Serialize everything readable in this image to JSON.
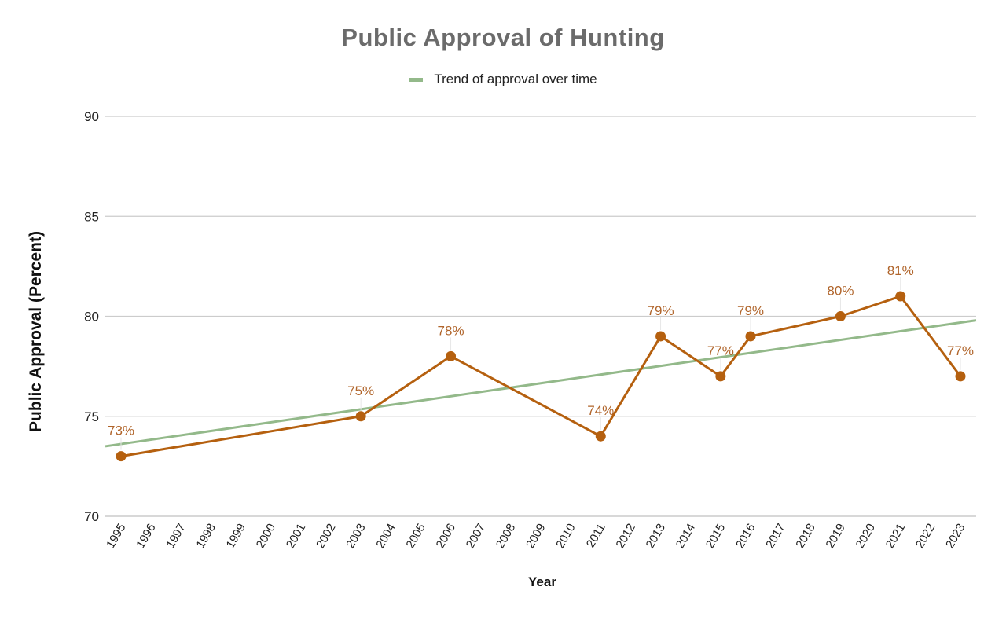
{
  "chart_data": {
    "type": "line",
    "title": "Public Approval of Hunting",
    "xlabel": "Year",
    "ylabel": "Public Approval (Percent)",
    "ylim": [
      70,
      90
    ],
    "yticks": [
      70,
      75,
      80,
      85,
      90
    ],
    "grid": true,
    "legend_position": "top",
    "categories": [
      "1995",
      "1996",
      "1997",
      "1998",
      "1999",
      "2000",
      "2001",
      "2002",
      "2003",
      "2004",
      "2005",
      "2006",
      "2007",
      "2008",
      "2009",
      "2010",
      "2011",
      "2012",
      "2013",
      "2014",
      "2015",
      "2016",
      "2017",
      "2018",
      "2019",
      "2020",
      "2021",
      "2022",
      "2023"
    ],
    "series": [
      {
        "name": "Public Approval",
        "color": "#b5600f",
        "points": [
          {
            "x": "1995",
            "y": 73,
            "label": "73%"
          },
          {
            "x": "2003",
            "y": 75,
            "label": "75%"
          },
          {
            "x": "2006",
            "y": 78,
            "label": "78%"
          },
          {
            "x": "2011",
            "y": 74,
            "label": "74%"
          },
          {
            "x": "2013",
            "y": 79,
            "label": "79%"
          },
          {
            "x": "2015",
            "y": 77,
            "label": "77%"
          },
          {
            "x": "2016",
            "y": 79,
            "label": "79%"
          },
          {
            "x": "2019",
            "y": 80,
            "label": "80%"
          },
          {
            "x": "2021",
            "y": 81,
            "label": "81%"
          },
          {
            "x": "2023",
            "y": 77,
            "label": "77%"
          }
        ]
      },
      {
        "name": "Trend of approval over time",
        "color": "#93b98a",
        "type": "trendline",
        "start": {
          "x": 1994.5,
          "y": 73.5
        },
        "end": {
          "x": 2023.5,
          "y": 79.8
        }
      }
    ]
  },
  "legend": {
    "label": "Trend of approval over time",
    "color": "#93b98a"
  },
  "colors": {
    "line": "#b5600f",
    "label": "#b0642a",
    "trend": "#93b98a",
    "grid": "#cccccc",
    "title": "#6b6b6b"
  }
}
